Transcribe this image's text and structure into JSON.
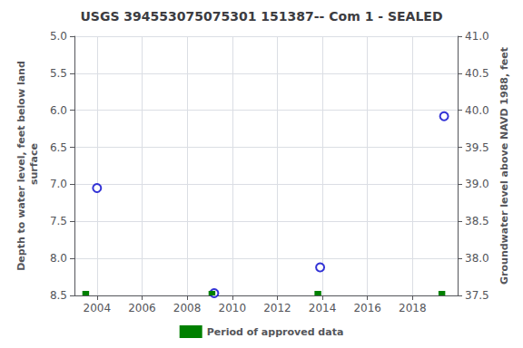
{
  "chart_data": {
    "type": "scatter",
    "title": "USGS 394553075075301 151387-- Com 1 - SEALED",
    "ylabel": "Depth to water level, feet below land\n surface",
    "y2label": "Groundwater level above NAVD 1988, feet",
    "xlim": [
      2003.0,
      2020.0
    ],
    "xticks": [
      2004,
      2006,
      2008,
      2010,
      2012,
      2014,
      2016,
      2018
    ],
    "ylim": [
      8.5,
      5.0
    ],
    "yticks": [
      {
        "value": 5.0,
        "label": "5.0"
      },
      5.5,
      {
        "value": 6.0,
        "label": "6.0"
      },
      6.5,
      {
        "value": 7.0,
        "label": "7.0"
      },
      7.5,
      {
        "value": 8.0,
        "label": "8.0"
      },
      8.5
    ],
    "y2lim": [
      37.5,
      41.0
    ],
    "y2ticks": [
      37.5,
      {
        "value": 38.0,
        "label": "38.0"
      },
      38.5,
      {
        "value": 39.0,
        "label": "39.0"
      },
      39.5,
      {
        "value": 40.0,
        "label": "40.0"
      },
      40.5,
      {
        "value": 41.0,
        "label": "41.0"
      }
    ],
    "grid": true,
    "legend": "bottom",
    "series": [
      {
        "type": "scatter",
        "color": "#0000cc",
        "marker": "open circle",
        "x": [
          2004.0,
          2009.2,
          2013.9,
          2019.4
        ],
        "values": [
          7.05,
          8.47,
          8.12,
          6.08
        ]
      },
      {
        "name": "Period of approved data",
        "type": "bar",
        "color": "#008000",
        "x": [
          2003.5,
          2009.1,
          2013.8,
          2019.3
        ]
      }
    ]
  }
}
